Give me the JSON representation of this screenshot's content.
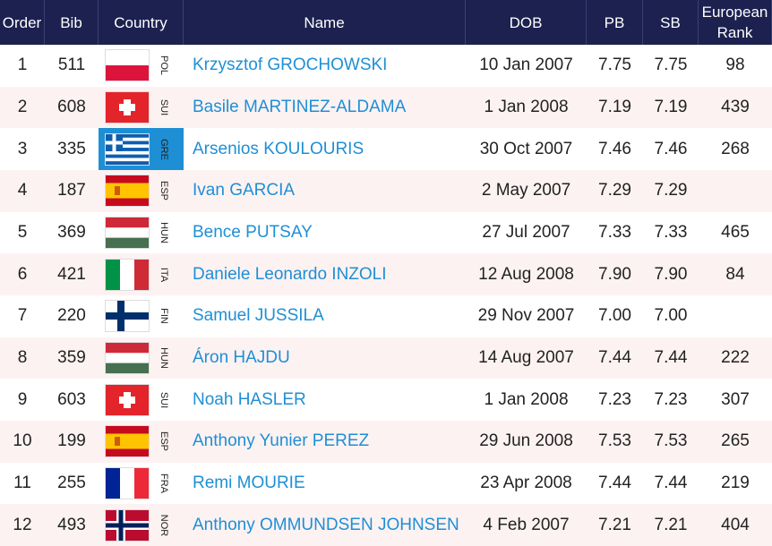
{
  "table": {
    "columns": [
      "Order",
      "Bib",
      "Country",
      "Name",
      "DOB",
      "PB",
      "SB",
      "European Rank"
    ],
    "rows": [
      [
        1,
        511,
        "POL",
        "Krzysztof GROCHOWSKI",
        "10 Jan 2007",
        "7.75",
        "7.75",
        98
      ],
      [
        2,
        608,
        "SUI",
        "Basile MARTINEZ-ALDAMA",
        "1 Jan 2008",
        "7.19",
        "7.19",
        439
      ],
      [
        3,
        335,
        "GRE",
        "Arsenios KOULOURIS",
        "30 Oct 2007",
        "7.46",
        "7.46",
        268
      ],
      [
        4,
        187,
        "ESP",
        "Ivan GARCIA",
        "2 May 2007",
        "7.29",
        "7.29",
        null
      ],
      [
        5,
        369,
        "HUN",
        "Bence PUTSAY",
        "27 Jul 2007",
        "7.33",
        "7.33",
        465
      ],
      [
        6,
        421,
        "ITA",
        "Daniele Leonardo INZOLI",
        "12 Aug 2008",
        "7.90",
        "7.90",
        84
      ],
      [
        7,
        220,
        "FIN",
        "Samuel JUSSILA",
        "29 Nov 2007",
        "7.00",
        "7.00",
        null
      ],
      [
        8,
        359,
        "HUN",
        "Áron HAJDU",
        "14 Aug 2007",
        "7.44",
        "7.44",
        222
      ],
      [
        9,
        603,
        "SUI",
        "Noah HASLER",
        "1 Jan 2008",
        "7.23",
        "7.23",
        307
      ],
      [
        10,
        199,
        "ESP",
        "Anthony Yunier PEREZ",
        "29 Jun 2008",
        "7.53",
        "7.53",
        265
      ],
      [
        11,
        255,
        "FRA",
        "Remi MOURIE",
        "23 Apr 2008",
        "7.44",
        "7.44",
        219
      ],
      [
        12,
        493,
        "NOR",
        "Anthony OMMUNDSEN JOHNSEN",
        "4 Feb 2007",
        "7.21",
        "7.21",
        404
      ]
    ]
  }
}
